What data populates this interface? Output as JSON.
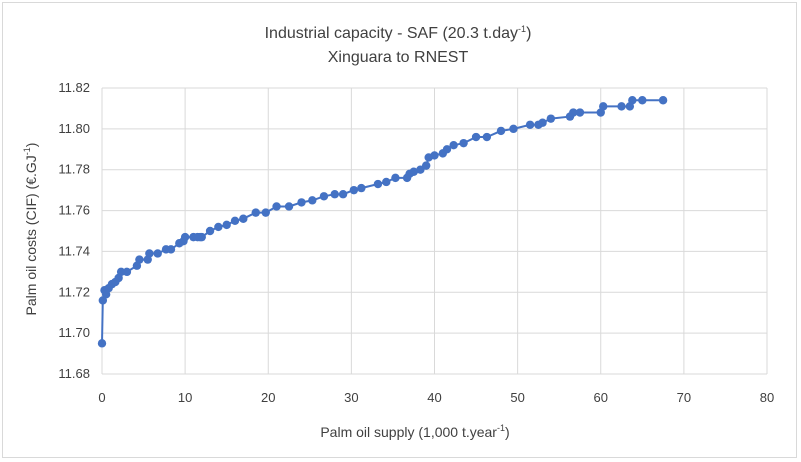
{
  "chart_data": {
    "type": "scatter",
    "title_main": "Industrial capacity - SAF (20.3 t.day",
    "title_sup": "-1",
    "title_end": ")",
    "subtitle": "Xinguara to RNEST",
    "xlabel_main": "Palm oil supply (1,000 t.year",
    "xlabel_sup": "-1",
    "xlabel_end": ")",
    "ylabel_main": "Palm oil costs (CIF) (€.GJ",
    "ylabel_sup": "-1",
    "ylabel_end": ")",
    "xlim": [
      0,
      80
    ],
    "ylim": [
      11.68,
      11.82
    ],
    "xticks": [
      "0",
      "10",
      "20",
      "30",
      "40",
      "50",
      "60",
      "70",
      "80"
    ],
    "yticks": [
      "11.68",
      "11.70",
      "11.72",
      "11.74",
      "11.76",
      "11.78",
      "11.80",
      "11.82"
    ],
    "grid": "vertical and horizontal",
    "color": "#4472C4",
    "series": [
      {
        "x": [
          0.0,
          0.1,
          0.3,
          0.5,
          0.8,
          1.2,
          1.6,
          2.0,
          2.3,
          3.0,
          4.2,
          4.5,
          5.5,
          5.7,
          6.7,
          7.7,
          8.3,
          9.3,
          9.8,
          10.0,
          11.0,
          11.5,
          11.8,
          12.0,
          13.0,
          14.0,
          15.0,
          16.0,
          17.0,
          18.5,
          19.7,
          21.0,
          22.5,
          24.0,
          25.3,
          26.7,
          28.0,
          29.0,
          30.3,
          31.2,
          33.2,
          34.2,
          35.3,
          36.7,
          37.0,
          37.5,
          38.3,
          39.0,
          39.3,
          40.0,
          41.0,
          41.5,
          42.3,
          43.5,
          45.0,
          46.3,
          48.0,
          49.5,
          51.5,
          52.5,
          53.0,
          54.0,
          56.3,
          56.7,
          57.5,
          60.0,
          60.3,
          62.5,
          63.5,
          63.8,
          65.0,
          67.5
        ],
        "y": [
          11.695,
          11.716,
          11.721,
          11.719,
          11.722,
          11.724,
          11.725,
          11.727,
          11.73,
          11.73,
          11.733,
          11.736,
          11.736,
          11.739,
          11.739,
          11.741,
          11.741,
          11.744,
          11.745,
          11.747,
          11.747,
          11.747,
          11.747,
          11.747,
          11.75,
          11.752,
          11.753,
          11.755,
          11.756,
          11.759,
          11.759,
          11.762,
          11.762,
          11.764,
          11.765,
          11.767,
          11.768,
          11.768,
          11.77,
          11.771,
          11.773,
          11.774,
          11.776,
          11.776,
          11.778,
          11.779,
          11.78,
          11.782,
          11.786,
          11.787,
          11.788,
          11.79,
          11.792,
          11.793,
          11.796,
          11.796,
          11.799,
          11.8,
          11.802,
          11.802,
          11.803,
          11.805,
          11.806,
          11.808,
          11.808,
          11.808,
          11.811,
          11.811,
          11.811,
          11.814,
          11.814,
          11.814
        ]
      }
    ]
  }
}
